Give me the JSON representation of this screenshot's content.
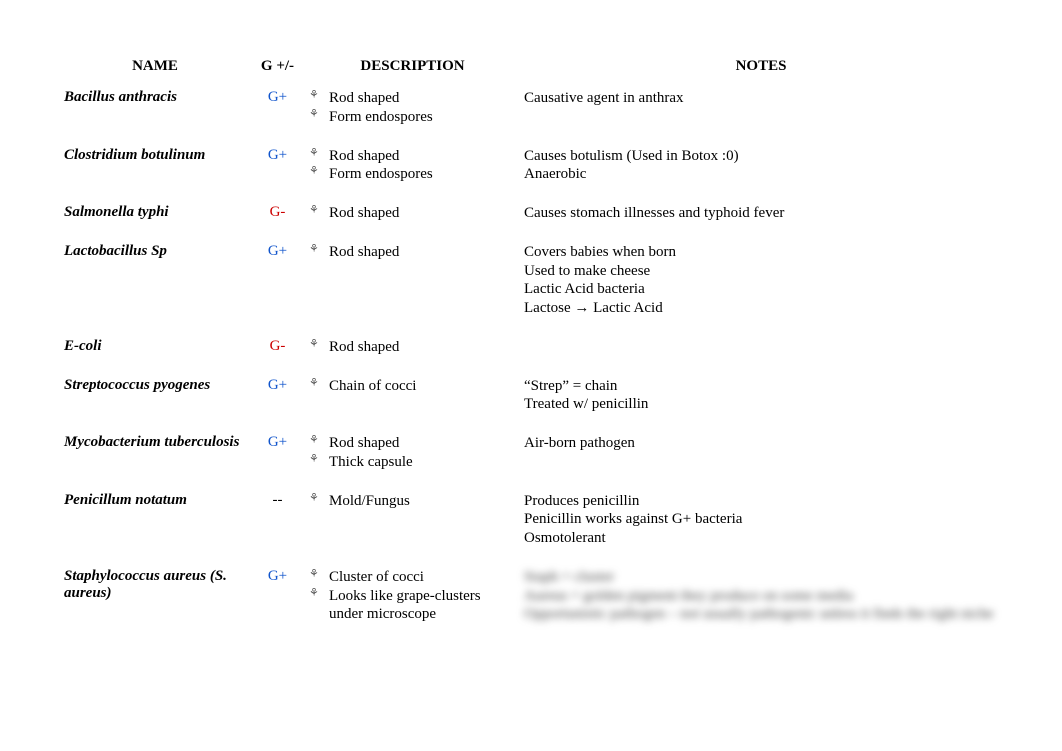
{
  "headers": {
    "name": "NAME",
    "gram": "G +/-",
    "desc": "DESCRIPTION",
    "notes": "NOTES"
  },
  "gram_colors": {
    "pos": "#1155cc",
    "neg": "#cc0000",
    "none": "#000000"
  },
  "rows": [
    {
      "name": "Bacillus anthracis",
      "gram": "G+",
      "gram_class": "g-pos",
      "desc": [
        "Rod shaped",
        "Form endospores"
      ],
      "notes": [
        "Causative agent in anthrax"
      ],
      "notes_blur": false
    },
    {
      "name": "Clostridium botulinum",
      "gram": "G+",
      "gram_class": "g-pos",
      "desc": [
        "Rod shaped",
        "Form endospores"
      ],
      "notes": [
        "Causes botulism  (Used in Botox :0)",
        "Anaerobic"
      ],
      "notes_blur": false
    },
    {
      "name": "Salmonella typhi",
      "gram": "G-",
      "gram_class": "g-neg",
      "desc": [
        "Rod shaped"
      ],
      "notes": [
        "Causes stomach illnesses and typhoid fever"
      ],
      "notes_blur": false
    },
    {
      "name": "Lactobacillus Sp",
      "gram": "G+",
      "gram_class": "g-pos",
      "desc": [
        "Rod shaped"
      ],
      "notes": [
        "Covers babies when born",
        "Used to make cheese",
        "Lactic Acid bacteria",
        "Lactose → Lactic Acid"
      ],
      "notes_blur": false
    },
    {
      "name": "E-coli",
      "gram": "G-",
      "gram_class": "g-neg",
      "desc": [
        "Rod shaped"
      ],
      "notes": [
        ""
      ],
      "notes_blur": false
    },
    {
      "name": "Streptococcus pyogenes",
      "gram": "G+",
      "gram_class": "g-pos",
      "desc": [
        "Chain of cocci"
      ],
      "notes": [
        "“Strep” = chain",
        "Treated w/ penicillin"
      ],
      "notes_blur": false
    },
    {
      "name": "Mycobacterium tuberculosis",
      "gram": "G+",
      "gram_class": "g-pos",
      "desc": [
        "Rod shaped",
        "Thick capsule"
      ],
      "notes": [
        "Air-born pathogen"
      ],
      "notes_blur": false
    },
    {
      "name": "Penicillum notatum",
      "gram": "--",
      "gram_class": "g-none",
      "desc": [
        "Mold/Fungus"
      ],
      "notes": [
        "Produces penicillin",
        "Penicillin works against G+ bacteria",
        "Osmotolerant"
      ],
      "notes_blur": false
    },
    {
      "name": "Staphylococcus aureus (S. aureus)",
      "gram": "G+",
      "gram_class": "g-pos",
      "desc": [
        "Cluster of cocci",
        "Looks like grape-clusters under microscope"
      ],
      "notes": [
        "Staph = cluster",
        "Aureus = golden pigment they produce on some media",
        "Opportunistic pathogen – not usually pathogenic unless it finds the right niche"
      ],
      "notes_blur": true
    }
  ]
}
